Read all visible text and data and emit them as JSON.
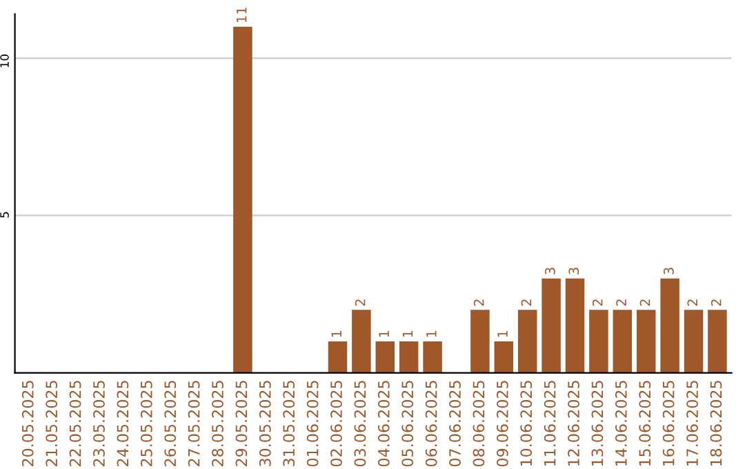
{
  "chart_data": {
    "type": "bar",
    "categories": [
      "20.05.2025",
      "21.05.2025",
      "22.05.2025",
      "23.05.2025",
      "24.05.2025",
      "25.05.2025",
      "26.05.2025",
      "27.05.2025",
      "28.05.2025",
      "29.05.2025",
      "30.05.2025",
      "31.05.2025",
      "01.06.2025",
      "02.06.2025",
      "03.06.2025",
      "04.06.2025",
      "05.06.2025",
      "06.06.2025",
      "07.06.2025",
      "08.06.2025",
      "09.06.2025",
      "10.06.2025",
      "11.06.2025",
      "12.06.2025",
      "13.06.2025",
      "14.06.2025",
      "15.06.2025",
      "16.06.2025",
      "17.06.2025",
      "18.06.2025"
    ],
    "values": [
      0,
      0,
      0,
      0,
      0,
      0,
      0,
      0,
      0,
      11,
      0,
      0,
      0,
      1,
      2,
      1,
      1,
      1,
      0,
      2,
      1,
      2,
      3,
      3,
      2,
      2,
      2,
      3,
      2,
      2
    ],
    "value_labels": [
      null,
      null,
      null,
      null,
      null,
      null,
      null,
      null,
      null,
      "11",
      null,
      null,
      null,
      "1",
      "2",
      "1",
      "1",
      "1",
      null,
      "2",
      "1",
      "2",
      "3",
      "3",
      "2",
      "2",
      "2",
      "3",
      "2",
      "2"
    ],
    "color": "#a0582a",
    "ylim": [
      0,
      11.4
    ],
    "yticks": [
      5,
      10
    ],
    "grid": "y",
    "legend": false
  }
}
